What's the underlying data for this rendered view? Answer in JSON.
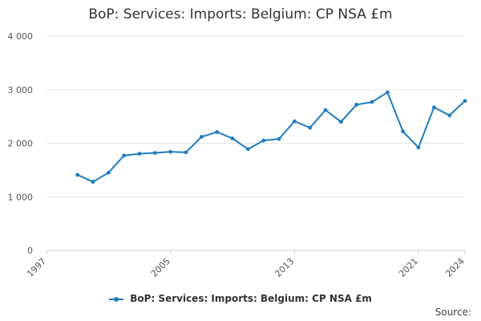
{
  "title": "BoP: Services: Imports: Belgium: CP NSA £m",
  "source_label": "Source:",
  "colors": {
    "series": "#1f7cc1",
    "grid": "#e6e6e6",
    "axis": "#cccccc"
  },
  "chart_data": {
    "type": "line",
    "title": "BoP: Services: Imports: Belgium: CP NSA £m",
    "xlabel": "",
    "ylabel": "",
    "xlim": [
      1997,
      2024
    ],
    "ylim": [
      0,
      4000
    ],
    "x_ticks": [
      1997,
      2005,
      2013,
      2021,
      2024
    ],
    "y_ticks": [
      {
        "value": 0,
        "label": "0"
      },
      {
        "value": 1000,
        "label": "1 000"
      },
      {
        "value": 2000,
        "label": "2 000"
      },
      {
        "value": 3000,
        "label": "3 000"
      },
      {
        "value": 4000,
        "label": "4 000"
      }
    ],
    "grid": true,
    "legend_position": "bottom",
    "series": [
      {
        "name": "BoP: Services: Imports: Belgium: CP NSA £m",
        "x": [
          1999,
          2000,
          2001,
          2002,
          2003,
          2004,
          2005,
          2006,
          2007,
          2008,
          2009,
          2010,
          2011,
          2012,
          2013,
          2014,
          2015,
          2016,
          2017,
          2018,
          2019,
          2020,
          2021,
          2022,
          2023,
          2024
        ],
        "y": [
          1410,
          1280,
          1450,
          1770,
          1805,
          1820,
          1840,
          1830,
          2120,
          2210,
          2090,
          1890,
          2050,
          2080,
          2410,
          2290,
          2620,
          2400,
          2720,
          2770,
          2950,
          2220,
          1920,
          2670,
          2520,
          2790
        ]
      }
    ]
  }
}
